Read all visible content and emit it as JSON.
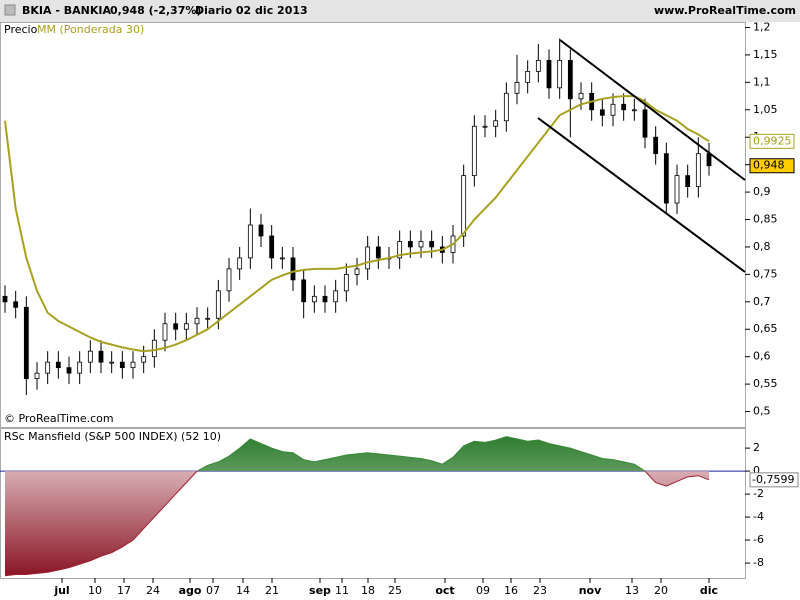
{
  "header": {
    "title": "BKIA - BANKIA",
    "quote": "0,948 (-2,37%)",
    "period": "Diario  02 dic 2013",
    "site": "www.ProRealTime.com"
  },
  "chart_data": [
    {
      "type": "candlestick",
      "price_label": "Precio",
      "ma_name": "MM (Ponderada 30)",
      "ma_color": "#a8a020",
      "up_color": "#ffffff",
      "down_color": "#000000",
      "copyright": "© ProRealTime.com",
      "xticks": [
        "jul",
        "10",
        "17",
        "24",
        "ago",
        "07",
        "14",
        "21",
        "sep",
        "11",
        "18",
        "25",
        "oct",
        "09",
        "16",
        "23",
        "nov",
        "13",
        "20",
        "dic"
      ],
      "open": [
        0.71,
        0.7,
        0.69,
        0.56,
        0.57,
        0.59,
        0.58,
        0.57,
        0.59,
        0.61,
        0.59,
        0.59,
        0.58,
        0.59,
        0.6,
        0.63,
        0.66,
        0.65,
        0.66,
        0.67,
        0.67,
        0.72,
        0.76,
        0.78,
        0.84,
        0.82,
        0.78,
        0.78,
        0.74,
        0.7,
        0.71,
        0.7,
        0.72,
        0.75,
        0.76,
        0.8,
        0.78,
        0.78,
        0.81,
        0.8,
        0.81,
        0.8,
        0.79,
        0.82,
        0.93,
        1.02,
        1.02,
        1.03,
        1.08,
        1.1,
        1.12,
        1.14,
        1.09,
        1.14,
        1.07,
        1.08,
        1.05,
        1.04,
        1.06,
        1.05,
        1.05,
        1.0,
        0.97,
        0.88,
        0.93,
        0.91,
        0.97
      ],
      "high": [
        0.73,
        0.72,
        0.71,
        0.59,
        0.61,
        0.61,
        0.6,
        0.61,
        0.63,
        0.63,
        0.61,
        0.61,
        0.61,
        0.62,
        0.65,
        0.68,
        0.68,
        0.68,
        0.69,
        0.69,
        0.74,
        0.78,
        0.8,
        0.87,
        0.86,
        0.84,
        0.8,
        0.8,
        0.76,
        0.73,
        0.73,
        0.74,
        0.77,
        0.78,
        0.82,
        0.82,
        0.8,
        0.83,
        0.83,
        0.83,
        0.83,
        0.82,
        0.84,
        0.95,
        1.04,
        1.04,
        1.05,
        1.1,
        1.15,
        1.14,
        1.17,
        1.16,
        1.18,
        1.16,
        1.1,
        1.1,
        1.07,
        1.08,
        1.08,
        1.07,
        1.07,
        1.02,
        0.99,
        0.95,
        0.95,
        1.0,
        0.99
      ],
      "low": [
        0.68,
        0.67,
        0.53,
        0.54,
        0.55,
        0.56,
        0.55,
        0.55,
        0.57,
        0.57,
        0.57,
        0.56,
        0.56,
        0.57,
        0.58,
        0.61,
        0.63,
        0.63,
        0.64,
        0.65,
        0.65,
        0.7,
        0.74,
        0.76,
        0.8,
        0.76,
        0.76,
        0.72,
        0.67,
        0.68,
        0.68,
        0.68,
        0.7,
        0.73,
        0.74,
        0.76,
        0.76,
        0.76,
        0.78,
        0.78,
        0.78,
        0.77,
        0.77,
        0.8,
        0.91,
        1.0,
        1.0,
        1.01,
        1.06,
        1.08,
        1.1,
        1.07,
        1.07,
        1.0,
        1.05,
        1.03,
        1.02,
        1.02,
        1.03,
        1.03,
        0.98,
        0.95,
        0.86,
        0.86,
        0.89,
        0.89,
        0.93
      ],
      "close": [
        0.7,
        0.69,
        0.56,
        0.57,
        0.59,
        0.58,
        0.57,
        0.59,
        0.61,
        0.59,
        0.59,
        0.58,
        0.59,
        0.6,
        0.63,
        0.66,
        0.65,
        0.66,
        0.67,
        0.67,
        0.72,
        0.76,
        0.78,
        0.84,
        0.82,
        0.78,
        0.78,
        0.74,
        0.7,
        0.71,
        0.7,
        0.72,
        0.75,
        0.76,
        0.8,
        0.78,
        0.78,
        0.81,
        0.8,
        0.81,
        0.8,
        0.79,
        0.82,
        0.93,
        1.02,
        1.02,
        1.03,
        1.08,
        1.1,
        1.12,
        1.14,
        1.09,
        1.14,
        1.07,
        1.08,
        1.05,
        1.04,
        1.06,
        1.05,
        1.05,
        1.0,
        0.97,
        0.88,
        0.93,
        0.91,
        0.97,
        0.948
      ],
      "ma": [
        1.03,
        0.87,
        0.78,
        0.72,
        0.68,
        0.665,
        0.655,
        0.645,
        0.635,
        0.627,
        0.622,
        0.617,
        0.613,
        0.61,
        0.612,
        0.616,
        0.622,
        0.63,
        0.64,
        0.65,
        0.665,
        0.68,
        0.695,
        0.71,
        0.725,
        0.74,
        0.748,
        0.755,
        0.758,
        0.76,
        0.76,
        0.76,
        0.763,
        0.766,
        0.772,
        0.776,
        0.78,
        0.785,
        0.788,
        0.79,
        0.792,
        0.795,
        0.805,
        0.825,
        0.85,
        0.87,
        0.89,
        0.915,
        0.94,
        0.965,
        0.99,
        1.015,
        1.04,
        1.05,
        1.06,
        1.065,
        1.07,
        1.073,
        1.075,
        1.075,
        1.065,
        1.05,
        1.04,
        1.03,
        1.015,
        1.005,
        0.9925
      ],
      "last_label": "0,948",
      "ma_label": "0,9925",
      "ylim": [
        0.47,
        1.21
      ],
      "yticks": [
        {
          "value": 1.2,
          "label": "1,2"
        },
        {
          "value": 1.15,
          "label": "1,15"
        },
        {
          "value": 1.1,
          "label": "1,1"
        },
        {
          "value": 1.05,
          "label": "1,05"
        },
        {
          "value": 1,
          "label": "1"
        },
        {
          "value": 0.95,
          "label": "0,95"
        },
        {
          "value": 0.9,
          "label": "0,9"
        },
        {
          "value": 0.85,
          "label": "0,85"
        },
        {
          "value": 0.8,
          "label": "0,8"
        },
        {
          "value": 0.75,
          "label": "0,75"
        },
        {
          "value": 0.7,
          "label": "0,7"
        },
        {
          "value": 0.65,
          "label": "0,65"
        },
        {
          "value": 0.6,
          "label": "0,6"
        },
        {
          "value": 0.55,
          "label": "0,55"
        },
        {
          "value": 0.5,
          "label": "0,5"
        }
      ]
    },
    {
      "type": "area",
      "title": "RSc Mansfield (S&P 500 INDEX) (52 10)",
      "pos_color": "#3a8a3a",
      "neg_color": "#a02030",
      "values": [
        -9.1,
        -9.0,
        -9.0,
        -8.9,
        -8.8,
        -8.6,
        -8.4,
        -8.1,
        -7.8,
        -7.4,
        -7.1,
        -6.6,
        -6.0,
        -5.0,
        -4.0,
        -3.0,
        -2.0,
        -1.0,
        0.0,
        0.5,
        0.8,
        1.3,
        2.0,
        2.8,
        2.4,
        2.0,
        1.7,
        1.6,
        1.0,
        0.8,
        1.0,
        1.2,
        1.4,
        1.5,
        1.6,
        1.5,
        1.4,
        1.3,
        1.2,
        1.1,
        0.9,
        0.6,
        1.2,
        2.2,
        2.6,
        2.5,
        2.7,
        3.0,
        2.8,
        2.6,
        2.7,
        2.4,
        2.2,
        2.0,
        1.7,
        1.4,
        1.1,
        1.0,
        0.8,
        0.6,
        0.0,
        -1.0,
        -1.3,
        -0.9,
        -0.5,
        -0.4,
        -0.7599
      ],
      "last_label": "-0,7599",
      "ylim": [
        -9.3,
        3.75
      ],
      "yticks": [
        2,
        0,
        -2,
        -4,
        -6,
        -8
      ]
    }
  ]
}
